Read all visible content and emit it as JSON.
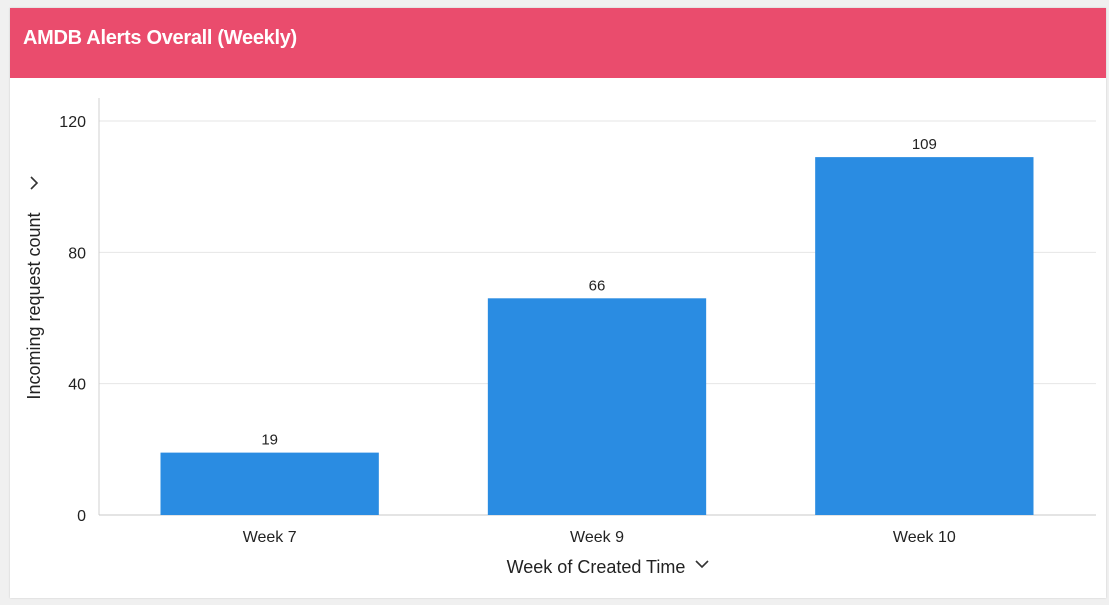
{
  "widget": {
    "title": "AMDB Alerts Overall (Weekly)",
    "header_color": "#ea4c6d"
  },
  "chart_data": {
    "type": "bar",
    "categories": [
      "Week 7",
      "Week 9",
      "Week 10"
    ],
    "values": [
      19,
      66,
      109
    ],
    "data_labels": [
      "19",
      "66",
      "109"
    ],
    "xlabel": "Week of Created Time",
    "ylabel": "Incoming request count",
    "ylim": [
      0,
      120
    ],
    "yticks": [
      0,
      40,
      80,
      120
    ],
    "ytick_labels": [
      "0",
      "40",
      "80",
      "120"
    ],
    "bar_color": "#2a8ce2",
    "grid": true,
    "legend": "none"
  },
  "icons": {
    "xlabel_dropdown": "chevron-down-icon",
    "ylabel_dropdown": "chevron-right-icon"
  }
}
